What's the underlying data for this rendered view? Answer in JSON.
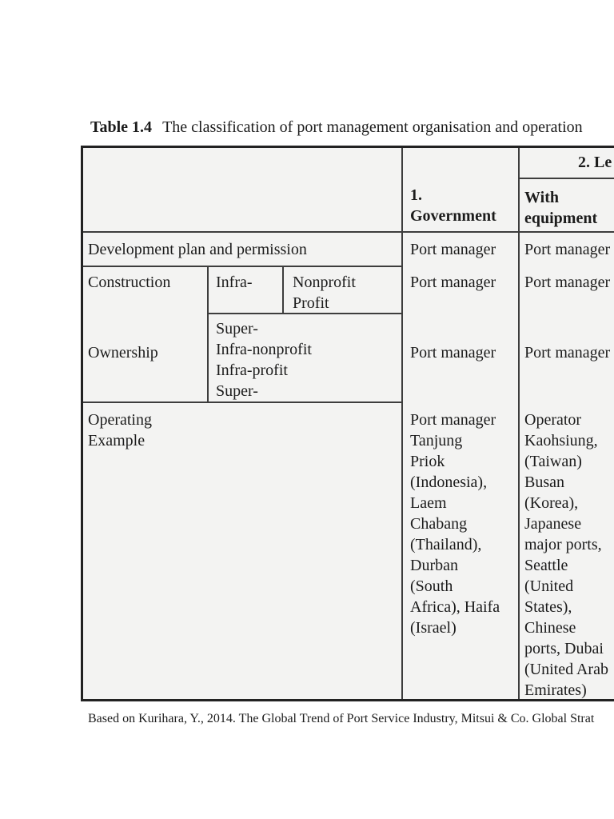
{
  "caption": {
    "label": "Table 1.4",
    "text": "The classification of port management organisation and operation"
  },
  "table": {
    "header": {
      "government": "1.\nGovernment",
      "lease_group": "2. Le",
      "with_equipment": "With\nequipment"
    },
    "row_labels": {
      "development": "Development plan and permission",
      "construction": "Construction",
      "ownership": "Ownership",
      "operating": "Operating\nExample"
    },
    "construction_sub": {
      "infra": "Infra-",
      "profit_types": "Nonprofit\nProfit",
      "ownership_types": "Super-\nInfra-nonprofit\nInfra-profit\nSuper-"
    },
    "government_col": {
      "development": "Port manager",
      "construction": "Port manager",
      "ownership": "Port manager",
      "operating": "Port manager\nTanjung\nPriok\n(Indonesia),\nLaem\nChabang\n(Thailand),\nDurban\n(South\nAfrica), Haifa\n(Israel)"
    },
    "with_equipment_col": {
      "development": "Port manager",
      "construction": "Port manager",
      "ownership": "Port manager",
      "operating": "Operator\nKaohsiung,\n(Taiwan)\nBusan\n(Korea),\nJapanese\nmajor ports,\nSeattle\n(United\nStates),\nChinese\nports, Dubai\n(United Arab\nEmirates)"
    }
  },
  "footnote": "Based on Kurihara, Y., 2014. The Global Trend of Port Service Industry, Mitsui & Co. Global Strat",
  "colors": {
    "page_bg": "#ffffff",
    "table_bg": "#f3f3f2",
    "border_strong": "#222222",
    "line_thin": "#3d3d3d",
    "text": "#1c1c1c"
  }
}
